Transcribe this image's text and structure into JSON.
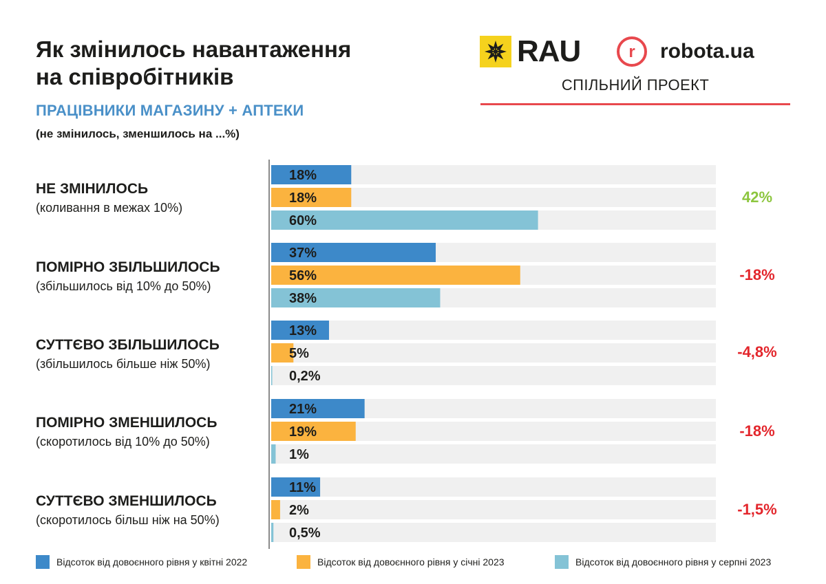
{
  "header": {
    "title_line1": "Як змінилось навантаження",
    "title_line2": "на співробітників",
    "subtitle": "ПРАЦІВНИКИ МАГАЗИНУ + АПТЕКИ",
    "note": "(не змінилось, зменшилось на ...%)"
  },
  "logos": {
    "rau": "RAU",
    "robota": "robota.ua",
    "joint_project": "СПІЛЬНИЙ ПРОЕКТ"
  },
  "categories": [
    {
      "title": "НЕ ЗМІНИЛОСЬ",
      "subtitle": "(коливання в межах 10%)",
      "change": "42%",
      "change_color": "#8dc63f"
    },
    {
      "title": "ПОМІРНО ЗБІЛЬШИЛОСЬ",
      "subtitle": "(збільшилось від 10% до 50%)",
      "change": "-18%",
      "change_color": "#e3262c"
    },
    {
      "title": "СУТТЄВО ЗБІЛЬШИЛОСЬ",
      "subtitle": "(збільшилось більше ніж 50%)",
      "change": "-4,8%",
      "change_color": "#e3262c"
    },
    {
      "title": "ПОМІРНО ЗМЕНШИЛОСЬ",
      "subtitle": "(скоротилось від 10% до 50%)",
      "change": "-18%",
      "change_color": "#e3262c"
    },
    {
      "title": "СУТТЄВО ЗМЕНШИЛОСЬ",
      "subtitle": "(скоротилось більш ніж на 50%)",
      "change": "-1,5%",
      "change_color": "#e3262c"
    }
  ],
  "chart_data": {
    "type": "bar",
    "orientation": "horizontal",
    "categories": [
      "НЕ ЗМІНИЛОСЬ",
      "ПОМІРНО ЗБІЛЬШИЛОСЬ",
      "СУТТЄВО ЗБІЛЬШИЛОСЬ",
      "ПОМІРНО ЗМЕНШИЛОСЬ",
      "СУТТЄВО ЗМЕНШИЛОСЬ"
    ],
    "xlim": [
      0,
      100
    ],
    "series": [
      {
        "name": "Відсоток від довоєнного рівня у квітні 2022",
        "color": "#3d89c9",
        "values": [
          18,
          37,
          13,
          21,
          11
        ],
        "labels": [
          "18%",
          "37%",
          "13%",
          "21%",
          "11%"
        ]
      },
      {
        "name": "Відсоток від довоєнного рівня у січні 2023",
        "color": "#fbb33f",
        "values": [
          18,
          56,
          5,
          19,
          2
        ],
        "labels": [
          "18%",
          "56%",
          "5%",
          "19%",
          "2%"
        ]
      },
      {
        "name": "Відсоток від довоєнного рівня у серпні 2023",
        "color": "#84c3d6",
        "values": [
          60,
          38,
          0.2,
          1,
          0.5
        ],
        "labels": [
          "60%",
          "38%",
          "0,2%",
          "1%",
          "0,5%"
        ]
      }
    ],
    "track_color": "#f0f0f0",
    "legend_position": "bottom"
  }
}
